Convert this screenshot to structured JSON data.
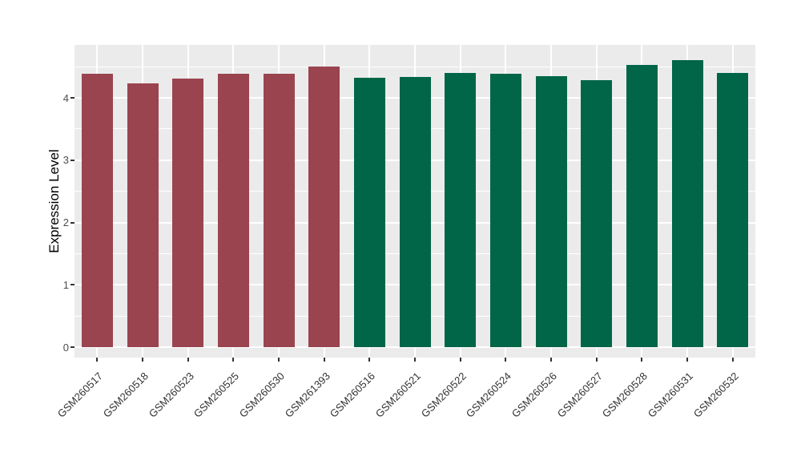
{
  "chart_data": {
    "type": "bar",
    "title": "",
    "xlabel": "",
    "ylabel": "Expression Level",
    "categories": [
      "GSM260517",
      "GSM260518",
      "GSM260523",
      "GSM260525",
      "GSM260530",
      "GSM261393",
      "GSM260516",
      "GSM260521",
      "GSM260522",
      "GSM260524",
      "GSM260526",
      "GSM260527",
      "GSM260528",
      "GSM260531",
      "GSM260532"
    ],
    "values": [
      4.39,
      4.23,
      4.31,
      4.38,
      4.39,
      4.5,
      4.32,
      4.33,
      4.4,
      4.38,
      4.35,
      4.28,
      4.53,
      4.61,
      4.4
    ],
    "bar_groups": [
      "group1",
      "group1",
      "group1",
      "group1",
      "group1",
      "group1",
      "group2",
      "group2",
      "group2",
      "group2",
      "group2",
      "group2",
      "group2",
      "group2",
      "group2"
    ],
    "group_colors": {
      "group1": "#9A4450",
      "group2": "#006647"
    },
    "yticks": [
      0,
      1,
      2,
      3,
      4
    ],
    "yticks_minor": [
      0.5,
      1.5,
      2.5,
      3.5,
      4.5
    ],
    "ylim": [
      -0.17,
      4.85
    ],
    "grid": "on",
    "legend": "none",
    "panel_background": "#EBEBEB",
    "gridline_color": "#FFFFFF",
    "tick_color": "#333333",
    "axis_text_color": "#4D4D4D"
  }
}
